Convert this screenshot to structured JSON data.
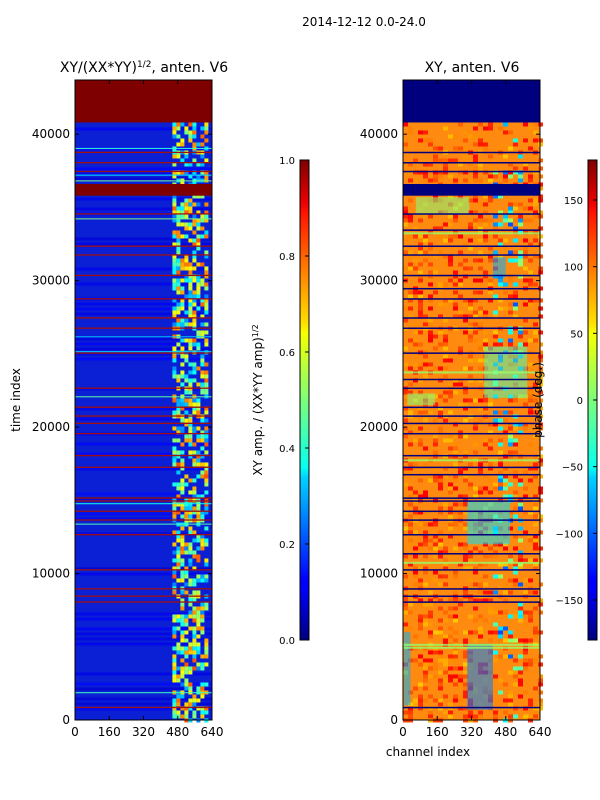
{
  "suptitle": "2014-12-12 0.0-24.0",
  "chart_data": [
    {
      "type": "heatmap",
      "title_base": "XY/(XX*YY)",
      "title_exponent": "1/2",
      "title_suffix": ", anten. V6",
      "xlabel": "",
      "ylabel": "time index",
      "xlim": [
        0,
        640
      ],
      "ylim": [
        0,
        43700
      ],
      "xticks": [
        "0",
        "160",
        "320",
        "480",
        "640"
      ],
      "yticks": [
        "0",
        "10000",
        "20000",
        "30000",
        "40000"
      ],
      "colorbar": {
        "label_base": "XY amp. / (XX*YY amp)",
        "label_exponent": "1/2",
        "range": [
          0.0,
          1.0
        ],
        "ticks": [
          "0.0",
          "0.2",
          "0.4",
          "0.6",
          "0.8",
          "1.0"
        ],
        "colormap": "jet"
      }
    },
    {
      "type": "heatmap",
      "title": "XY, anten. V6",
      "xlabel": "channel index",
      "ylabel": "",
      "xlim": [
        0,
        640
      ],
      "ylim": [
        0,
        43700
      ],
      "xticks": [
        "0",
        "160",
        "320",
        "480",
        "640"
      ],
      "yticks": [
        "0",
        "10000",
        "20000",
        "30000",
        "40000"
      ],
      "colorbar": {
        "label": "phase (deg.)",
        "range": [
          -180,
          180
        ],
        "ticks": [
          "−150",
          "−100",
          "−50",
          "0",
          "50",
          "100",
          "150"
        ],
        "colormap": "jet"
      }
    }
  ]
}
